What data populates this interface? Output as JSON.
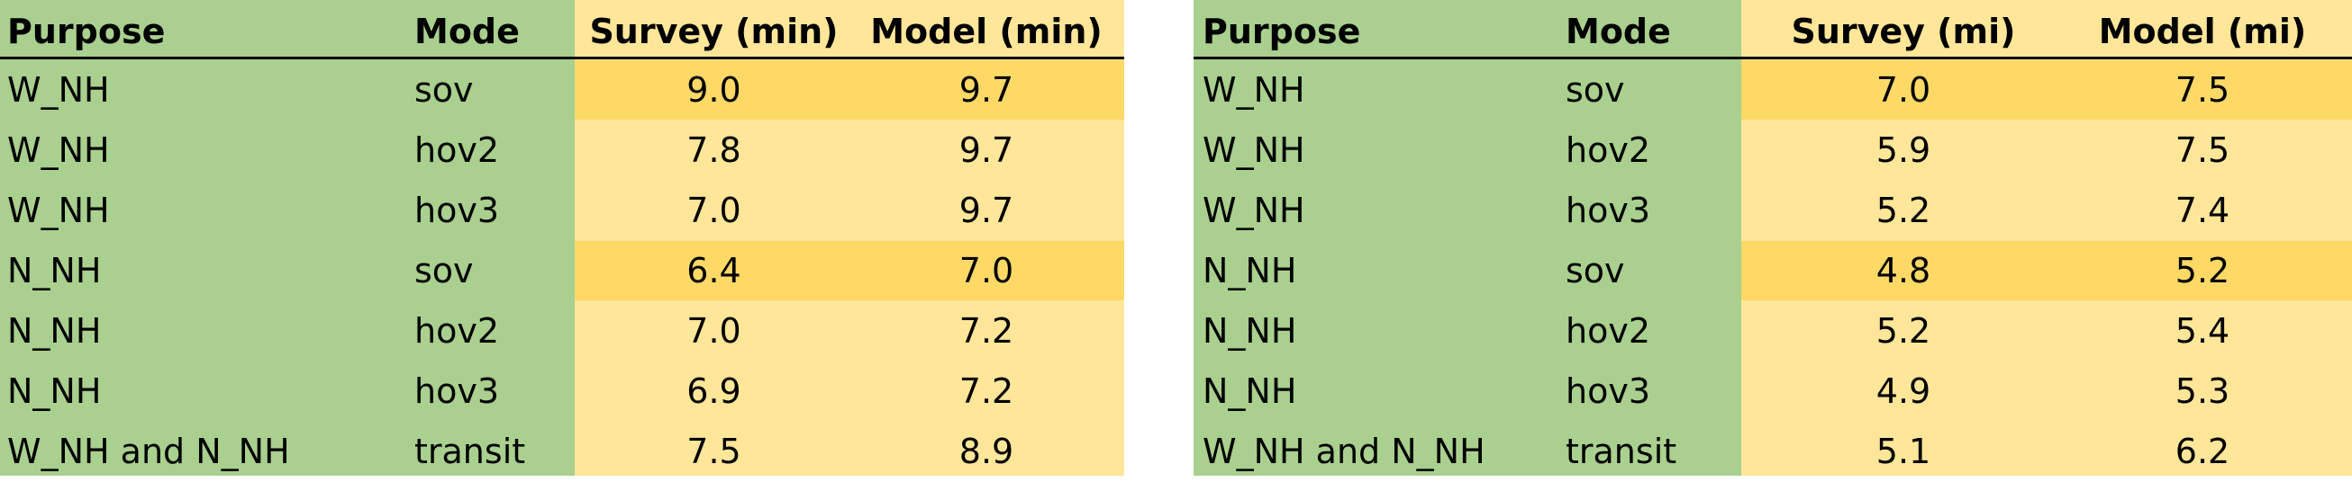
{
  "left_table": {
    "headers": [
      "Purpose",
      "Mode",
      "Survey (min)",
      "Model (min)"
    ],
    "rows": [
      {
        "purpose": "W_NH",
        "mode": "sov",
        "survey": "9.0",
        "model": "9.7",
        "highlight": true
      },
      {
        "purpose": "W_NH",
        "mode": "hov2",
        "survey": "7.8",
        "model": "9.7",
        "highlight": false
      },
      {
        "purpose": "W_NH",
        "mode": "hov3",
        "survey": "7.0",
        "model": "9.7",
        "highlight": false
      },
      {
        "purpose": "N_NH",
        "mode": "sov",
        "survey": "6.4",
        "model": "7.0",
        "highlight": true
      },
      {
        "purpose": "N_NH",
        "mode": "hov2",
        "survey": "7.0",
        "model": "7.2",
        "highlight": false
      },
      {
        "purpose": "N_NH",
        "mode": "hov3",
        "survey": "6.9",
        "model": "7.2",
        "highlight": false
      },
      {
        "purpose": "W_NH and N_NH",
        "mode": "transit",
        "survey": "7.5",
        "model": "8.9",
        "highlight": false
      }
    ]
  },
  "right_table": {
    "headers": [
      "Purpose",
      "Mode",
      "Survey (mi)",
      "Model (mi)"
    ],
    "rows": [
      {
        "purpose": "W_NH",
        "mode": "sov",
        "survey": "7.0",
        "model": "7.5",
        "highlight": true
      },
      {
        "purpose": "W_NH",
        "mode": "hov2",
        "survey": "5.9",
        "model": "7.5",
        "highlight": false
      },
      {
        "purpose": "W_NH",
        "mode": "hov3",
        "survey": "5.2",
        "model": "7.4",
        "highlight": false
      },
      {
        "purpose": "N_NH",
        "mode": "sov",
        "survey": "4.8",
        "model": "5.2",
        "highlight": true
      },
      {
        "purpose": "N_NH",
        "mode": "hov2",
        "survey": "5.2",
        "model": "5.4",
        "highlight": false
      },
      {
        "purpose": "N_NH",
        "mode": "hov3",
        "survey": "4.9",
        "model": "5.3",
        "highlight": false
      },
      {
        "purpose": "W_NH and N_NH",
        "mode": "transit",
        "survey": "5.1",
        "model": "6.2",
        "highlight": false
      }
    ]
  },
  "colors": {
    "label_columns": "#a9d08e",
    "value_columns": "#ffe699",
    "highlight_band": "#ffd966",
    "header_rule": "#000000"
  }
}
